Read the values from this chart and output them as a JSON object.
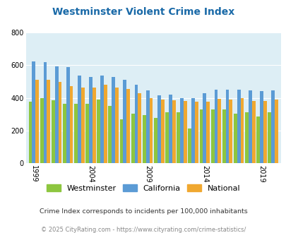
{
  "title": "Westminster Violent Crime Index",
  "title_color": "#1a6aa8",
  "years": [
    1999,
    2000,
    2001,
    2002,
    2003,
    2004,
    2005,
    2006,
    2007,
    2008,
    2009,
    2010,
    2011,
    2012,
    2013,
    2014,
    2015,
    2016,
    2017,
    2018,
    2019,
    2020
  ],
  "westminster": [
    375,
    400,
    385,
    365,
    365,
    365,
    390,
    350,
    270,
    305,
    295,
    275,
    310,
    310,
    210,
    330,
    330,
    330,
    305,
    310,
    285,
    310
  ],
  "california": [
    625,
    620,
    595,
    590,
    535,
    530,
    535,
    530,
    510,
    480,
    445,
    415,
    420,
    400,
    400,
    430,
    450,
    450,
    450,
    445,
    440,
    445
  ],
  "national": [
    510,
    510,
    500,
    470,
    465,
    465,
    480,
    465,
    455,
    430,
    400,
    390,
    385,
    380,
    375,
    375,
    395,
    390,
    400,
    380,
    380,
    390
  ],
  "bar_colors": [
    "#8dc63f",
    "#5b9bd5",
    "#f0a830"
  ],
  "bg_color": "#ddeef5",
  "ylim": [
    0,
    800
  ],
  "yticks": [
    0,
    200,
    400,
    600,
    800
  ],
  "xtick_years": [
    1999,
    2004,
    2009,
    2014,
    2019
  ],
  "legend_labels": [
    "Westminster",
    "California",
    "National"
  ],
  "footnote1": "Crime Index corresponds to incidents per 100,000 inhabitants",
  "footnote2": "© 2025 CityRating.com - https://www.cityrating.com/crime-statistics/",
  "footnote1_color": "#333333",
  "footnote2_color": "#888888",
  "grid_color": "#ffffff"
}
